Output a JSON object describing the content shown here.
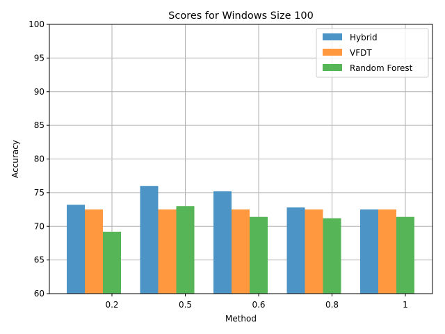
{
  "chart_data": {
    "type": "bar",
    "title": "Scores for Windows Size 100",
    "xlabel": "Method",
    "ylabel": "Accuracy",
    "categories": [
      "0.2",
      "0.5",
      "0.6",
      "0.8",
      "1"
    ],
    "ylim": [
      60,
      100
    ],
    "yticks": [
      60,
      65,
      70,
      75,
      80,
      85,
      90,
      95,
      100
    ],
    "grid": true,
    "legend_position": "top-right",
    "series": [
      {
        "name": "Hybrid",
        "color": "#4c94c6",
        "values": [
          73.2,
          76.0,
          75.2,
          72.8,
          72.5
        ]
      },
      {
        "name": "VFDT",
        "color": "#ff983e",
        "values": [
          72.5,
          72.5,
          72.5,
          72.5,
          72.5
        ]
      },
      {
        "name": "Random Forest",
        "color": "#56b556",
        "values": [
          69.2,
          73.0,
          71.4,
          71.2,
          71.4
        ]
      }
    ]
  }
}
